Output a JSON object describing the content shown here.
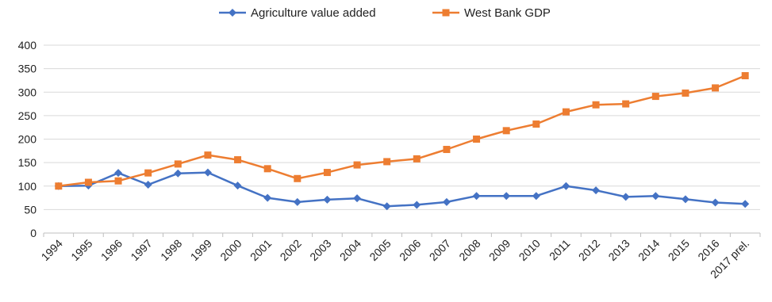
{
  "chart_data": {
    "type": "line",
    "title": "",
    "xlabel": "",
    "ylabel": "",
    "legend_position": "top-center",
    "grid": true,
    "ylim": [
      0,
      400
    ],
    "yticks": [
      0,
      50,
      100,
      150,
      200,
      250,
      300,
      350,
      400
    ],
    "categories": [
      "1994",
      "1995",
      "1996",
      "1997",
      "1998",
      "1999",
      "2000",
      "2001",
      "2002",
      "2003",
      "2004",
      "2005",
      "2006",
      "2007",
      "2008",
      "2009",
      "2010",
      "2011",
      "2012",
      "2013",
      "2014",
      "2015",
      "2016",
      "2017 prel."
    ],
    "series": [
      {
        "name": "Agriculture value added",
        "color": "#4472c4",
        "marker": "diamond",
        "values": [
          100,
          101,
          128,
          103,
          127,
          129,
          101,
          75,
          66,
          71,
          74,
          57,
          60,
          66,
          79,
          79,
          79,
          100,
          91,
          77,
          79,
          72,
          65,
          62
        ]
      },
      {
        "name": "West Bank GDP",
        "color": "#ed7d31",
        "marker": "square",
        "values": [
          100,
          108,
          111,
          128,
          147,
          166,
          156,
          137,
          116,
          129,
          145,
          152,
          158,
          178,
          200,
          218,
          232,
          258,
          273,
          275,
          291,
          298,
          309,
          335
        ]
      }
    ]
  }
}
